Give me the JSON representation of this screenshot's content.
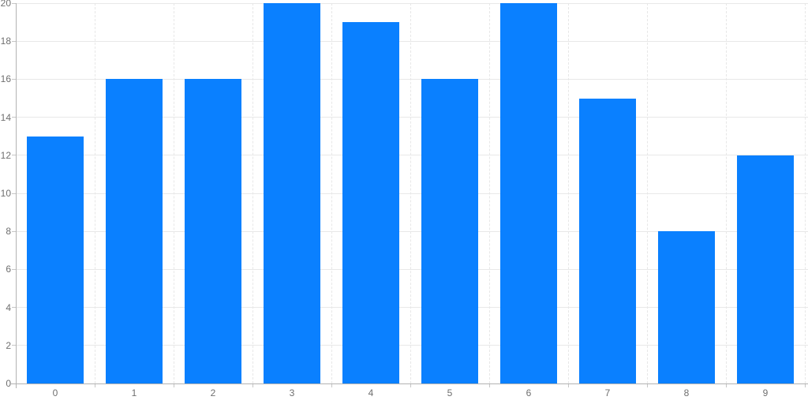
{
  "chart_data": {
    "type": "bar",
    "title": "",
    "xlabel": "",
    "ylabel": "",
    "categories": [
      "0",
      "1",
      "2",
      "3",
      "4",
      "5",
      "6",
      "7",
      "8",
      "9"
    ],
    "values": [
      13,
      16,
      16,
      20,
      19,
      16,
      20,
      15,
      8,
      12
    ],
    "ylim": [
      0,
      20
    ],
    "y_ticks": [
      0,
      2,
      4,
      6,
      8,
      10,
      12,
      14,
      16,
      18,
      20
    ],
    "grid": true,
    "legend": false,
    "colors": {
      "bar_fill": "#0a80ff",
      "gridline_horizontal": "#e8e8e8",
      "gridline_vertical": "#e7e7e7",
      "axis_line": "#b3b3b3",
      "tick_mark": "#c6c6c6",
      "label_text": "#6f6f6f",
      "background": "#ffffff"
    }
  }
}
